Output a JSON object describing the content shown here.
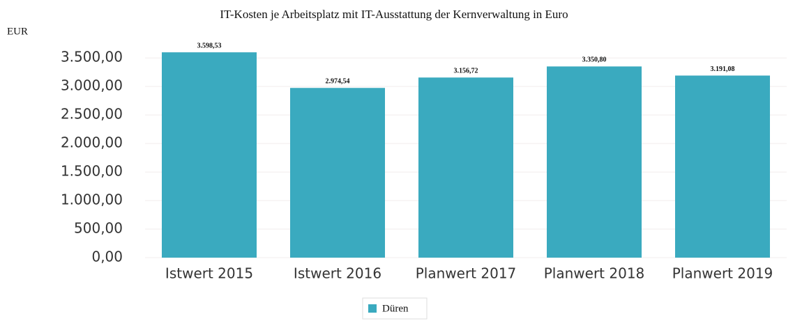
{
  "chart_data": {
    "type": "bar",
    "title": "IT-Kosten je Arbeitsplatz mit IT-Ausstattung der Kernverwaltung in Euro",
    "y_label": "EUR",
    "categories": [
      "Istwert 2015",
      "Istwert 2016",
      "Planwert 2017",
      "Planwert 2018",
      "Planwert 2019"
    ],
    "series": [
      {
        "name": "Düren",
        "color": "#3aaabf",
        "values": [
          3598.53,
          2974.54,
          3156.72,
          3350.8,
          3191.08
        ],
        "value_labels": [
          "3.598,53",
          "2.974,54",
          "3.156,72",
          "3.350,80",
          "3.191,08"
        ]
      }
    ],
    "ylim": [
      0,
      3600
    ],
    "yticks": [
      {
        "value": 0,
        "label": "0,00"
      },
      {
        "value": 500,
        "label": "500,00"
      },
      {
        "value": 1000,
        "label": "1.000,00"
      },
      {
        "value": 1500,
        "label": "1.500,00"
      },
      {
        "value": 2000,
        "label": "2.000,00"
      },
      {
        "value": 2500,
        "label": "2.500,00"
      },
      {
        "value": 3000,
        "label": "3.000,00"
      },
      {
        "value": 3500,
        "label": "3.500,00"
      }
    ],
    "grid": true
  }
}
